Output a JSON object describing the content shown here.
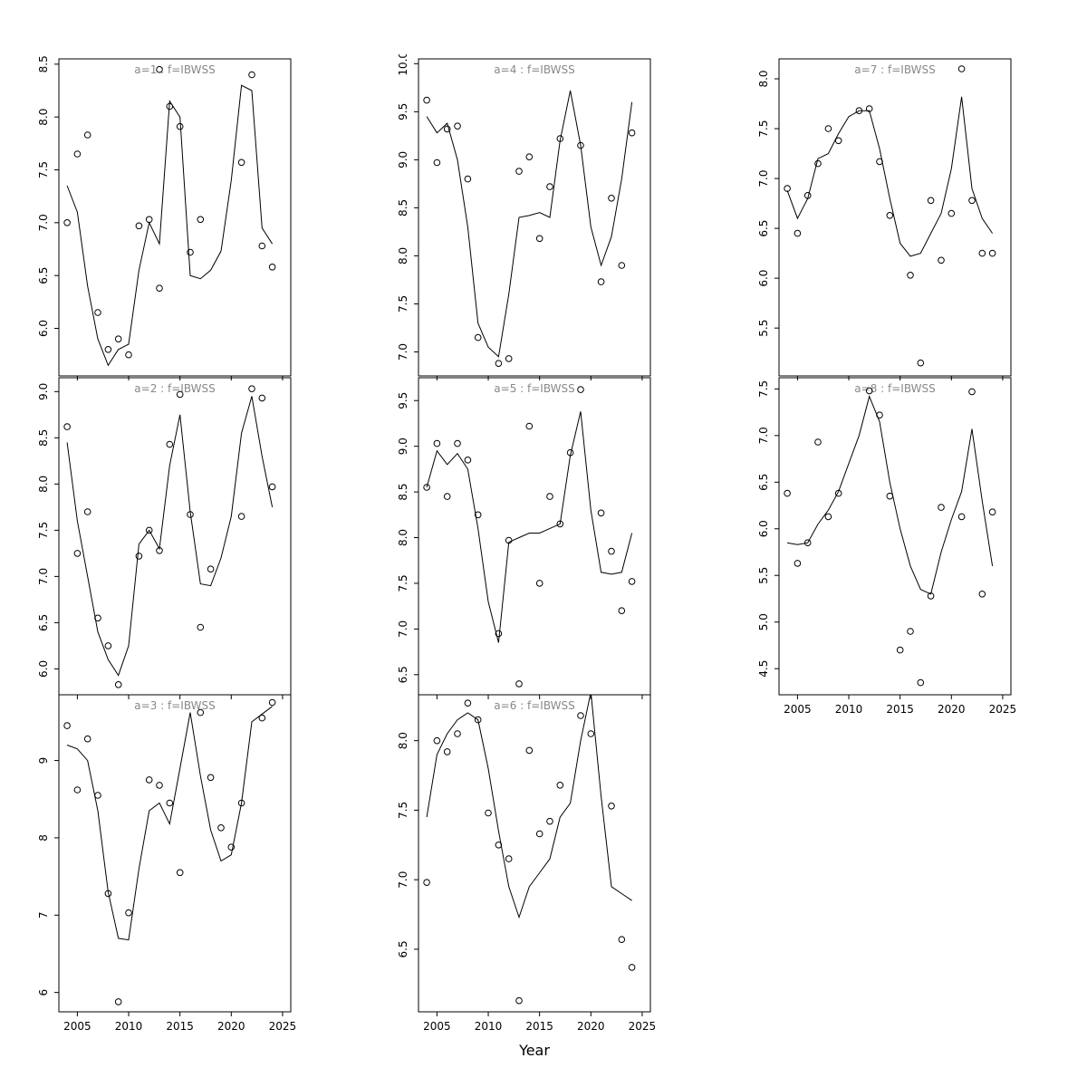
{
  "figure": {
    "xlabel": "Year",
    "background": "#ffffff",
    "axis_color": "#000000",
    "title_color": "#888888",
    "years": [
      2004,
      2005,
      2006,
      2007,
      2008,
      2009,
      2010,
      2011,
      2012,
      2013,
      2014,
      2015,
      2016,
      2017,
      2018,
      2019,
      2020,
      2021,
      2022,
      2023,
      2024
    ],
    "xticks": [
      2005,
      2010,
      2015,
      2020,
      2025
    ],
    "xlim": [
      2003.2,
      2025.8
    ]
  },
  "chart_data": [
    {
      "type": "scatter",
      "title": "a=1  :  f=IBWSS",
      "ylim": [
        5.55,
        8.55
      ],
      "yticks": [
        6.0,
        6.5,
        7.0,
        7.5,
        8.0,
        8.5
      ],
      "ytick_labels": [
        "6.0",
        "6.5",
        "7.0",
        "7.5",
        "8.0",
        "8.5"
      ],
      "show_x_labels": false,
      "points": [
        [
          2004,
          7.0
        ],
        [
          2005,
          7.65
        ],
        [
          2006,
          7.83
        ],
        [
          2007,
          6.15
        ],
        [
          2008,
          5.8
        ],
        [
          2009,
          5.9
        ],
        [
          2010,
          5.75
        ],
        [
          2011,
          6.97
        ],
        [
          2012,
          7.03
        ],
        [
          2013,
          6.38
        ],
        [
          2013,
          8.45
        ],
        [
          2014,
          8.1
        ],
        [
          2015,
          7.91
        ],
        [
          2016,
          6.72
        ],
        [
          2017,
          7.03
        ],
        [
          2021,
          7.57
        ],
        [
          2022,
          8.4
        ],
        [
          2023,
          6.78
        ],
        [
          2024,
          6.58
        ]
      ],
      "line": [
        7.35,
        7.1,
        6.4,
        5.9,
        5.65,
        5.8,
        5.85,
        6.55,
        7.0,
        6.8,
        8.15,
        8.0,
        6.5,
        6.47,
        6.55,
        6.73,
        7.4,
        8.3,
        8.25,
        6.95,
        6.8
      ]
    },
    {
      "type": "scatter",
      "title": "a=2  :  f=IBWSS",
      "ylim": [
        5.72,
        9.15
      ],
      "yticks": [
        6.0,
        6.5,
        7.0,
        7.5,
        8.0,
        8.5,
        9.0
      ],
      "ytick_labels": [
        "6.0",
        "6.5",
        "7.0",
        "7.5",
        "8.0",
        "8.5",
        "9.0"
      ],
      "show_x_labels": false,
      "points": [
        [
          2004,
          8.62
        ],
        [
          2005,
          7.25
        ],
        [
          2006,
          7.7
        ],
        [
          2007,
          6.55
        ],
        [
          2008,
          6.25
        ],
        [
          2009,
          5.83
        ],
        [
          2011,
          7.22
        ],
        [
          2012,
          7.5
        ],
        [
          2013,
          7.28
        ],
        [
          2014,
          8.43
        ],
        [
          2015,
          8.97
        ],
        [
          2016,
          7.67
        ],
        [
          2017,
          6.45
        ],
        [
          2018,
          7.08
        ],
        [
          2021,
          7.65
        ],
        [
          2022,
          9.03
        ],
        [
          2023,
          8.93
        ],
        [
          2024,
          7.97
        ]
      ],
      "line": [
        8.45,
        7.6,
        7.0,
        6.4,
        6.1,
        5.93,
        6.25,
        7.35,
        7.5,
        7.3,
        8.2,
        8.75,
        7.7,
        6.92,
        6.9,
        7.2,
        7.65,
        8.55,
        8.95,
        8.3,
        7.75
      ]
    },
    {
      "type": "scatter",
      "title": "a=3  :  f=IBWSS",
      "ylim": [
        5.75,
        9.85
      ],
      "yticks": [
        6,
        7,
        8,
        9
      ],
      "ytick_labels": [
        "6",
        "7",
        "8",
        "9"
      ],
      "show_x_labels": true,
      "points": [
        [
          2004,
          9.45
        ],
        [
          2005,
          8.62
        ],
        [
          2006,
          9.28
        ],
        [
          2007,
          8.55
        ],
        [
          2008,
          7.28
        ],
        [
          2009,
          5.88
        ],
        [
          2010,
          7.03
        ],
        [
          2012,
          8.75
        ],
        [
          2013,
          8.68
        ],
        [
          2014,
          8.45
        ],
        [
          2015,
          7.55
        ],
        [
          2017,
          9.62
        ],
        [
          2018,
          8.78
        ],
        [
          2019,
          8.13
        ],
        [
          2020,
          7.88
        ],
        [
          2021,
          8.45
        ],
        [
          2023,
          9.55
        ],
        [
          2024,
          9.75
        ]
      ],
      "line": [
        9.2,
        9.15,
        9.0,
        8.35,
        7.3,
        6.7,
        6.68,
        7.6,
        8.35,
        8.45,
        8.18,
        8.9,
        9.62,
        8.8,
        8.1,
        7.7,
        7.78,
        8.45,
        9.5,
        9.6,
        9.7
      ]
    },
    {
      "type": "scatter",
      "title": "a=4  :  f=IBWSS",
      "ylim": [
        6.75,
        10.05
      ],
      "yticks": [
        7.0,
        7.5,
        8.0,
        8.5,
        9.0,
        9.5,
        10.0
      ],
      "ytick_labels": [
        "7.0",
        "7.5",
        "8.0",
        "8.5",
        "9.0",
        "9.5",
        "10.0"
      ],
      "show_x_labels": false,
      "points": [
        [
          2004,
          9.62
        ],
        [
          2005,
          8.97
        ],
        [
          2006,
          9.32
        ],
        [
          2007,
          9.35
        ],
        [
          2008,
          8.8
        ],
        [
          2009,
          7.15
        ],
        [
          2011,
          6.88
        ],
        [
          2012,
          6.93
        ],
        [
          2013,
          8.88
        ],
        [
          2014,
          9.03
        ],
        [
          2015,
          8.18
        ],
        [
          2016,
          8.72
        ],
        [
          2017,
          9.22
        ],
        [
          2019,
          9.15
        ],
        [
          2021,
          7.73
        ],
        [
          2022,
          8.6
        ],
        [
          2023,
          7.9
        ],
        [
          2024,
          9.28
        ]
      ],
      "line": [
        9.45,
        9.28,
        9.38,
        9.0,
        8.3,
        7.3,
        7.05,
        6.95,
        7.6,
        8.4,
        8.42,
        8.45,
        8.4,
        9.2,
        9.72,
        9.15,
        8.3,
        7.9,
        8.2,
        8.8,
        9.6
      ]
    },
    {
      "type": "scatter",
      "title": "a=5  :  f=IBWSS",
      "ylim": [
        6.28,
        9.75
      ],
      "yticks": [
        6.5,
        7.0,
        7.5,
        8.0,
        8.5,
        9.0,
        9.5
      ],
      "ytick_labels": [
        "6.5",
        "7.0",
        "7.5",
        "8.0",
        "8.5",
        "9.0",
        "9.5"
      ],
      "show_x_labels": false,
      "points": [
        [
          2004,
          8.55
        ],
        [
          2005,
          9.03
        ],
        [
          2006,
          8.45
        ],
        [
          2007,
          9.03
        ],
        [
          2008,
          8.85
        ],
        [
          2009,
          8.25
        ],
        [
          2011,
          6.95
        ],
        [
          2012,
          7.97
        ],
        [
          2013,
          6.4
        ],
        [
          2014,
          9.22
        ],
        [
          2015,
          7.5
        ],
        [
          2016,
          8.45
        ],
        [
          2017,
          8.15
        ],
        [
          2018,
          8.93
        ],
        [
          2019,
          9.62
        ],
        [
          2021,
          8.27
        ],
        [
          2022,
          7.85
        ],
        [
          2023,
          7.2
        ],
        [
          2024,
          7.52
        ]
      ],
      "line": [
        8.55,
        8.95,
        8.8,
        8.92,
        8.75,
        8.1,
        7.3,
        6.85,
        7.95,
        8.0,
        8.05,
        8.05,
        8.1,
        8.15,
        8.9,
        9.38,
        8.3,
        7.62,
        7.6,
        7.62,
        8.05
      ]
    },
    {
      "type": "scatter",
      "title": "a=6  :  f=IBWSS",
      "ylim": [
        6.05,
        8.33
      ],
      "yticks": [
        6.5,
        7.0,
        7.5,
        8.0
      ],
      "ytick_labels": [
        "6.5",
        "7.0",
        "7.5",
        "8.0"
      ],
      "show_x_labels": true,
      "points": [
        [
          2004,
          6.98
        ],
        [
          2005,
          8.0
        ],
        [
          2006,
          7.92
        ],
        [
          2007,
          8.05
        ],
        [
          2008,
          8.27
        ],
        [
          2009,
          8.15
        ],
        [
          2010,
          7.48
        ],
        [
          2011,
          7.25
        ],
        [
          2012,
          7.15
        ],
        [
          2013,
          6.13
        ],
        [
          2014,
          7.93
        ],
        [
          2015,
          7.33
        ],
        [
          2016,
          7.42
        ],
        [
          2017,
          7.68
        ],
        [
          2019,
          8.18
        ],
        [
          2020,
          8.05
        ],
        [
          2022,
          7.53
        ],
        [
          2023,
          6.57
        ],
        [
          2024,
          6.37
        ]
      ],
      "line": [
        7.45,
        7.9,
        8.05,
        8.15,
        8.2,
        8.15,
        7.8,
        7.35,
        6.95,
        6.73,
        6.95,
        7.05,
        7.15,
        7.45,
        7.55,
        8.0,
        8.35,
        7.6,
        6.95,
        6.9,
        6.85
      ]
    },
    {
      "type": "scatter",
      "title": "a=7  :  f=IBWSS",
      "ylim": [
        5.02,
        8.2
      ],
      "yticks": [
        5.5,
        6.0,
        6.5,
        7.0,
        7.5,
        8.0
      ],
      "ytick_labels": [
        "5.5",
        "6.0",
        "6.5",
        "7.0",
        "7.5",
        "8.0"
      ],
      "show_x_labels": false,
      "points": [
        [
          2004,
          6.9
        ],
        [
          2005,
          6.45
        ],
        [
          2006,
          6.83
        ],
        [
          2007,
          7.15
        ],
        [
          2008,
          7.5
        ],
        [
          2009,
          7.38
        ],
        [
          2011,
          7.68
        ],
        [
          2012,
          7.7
        ],
        [
          2013,
          7.17
        ],
        [
          2014,
          6.63
        ],
        [
          2016,
          6.03
        ],
        [
          2017,
          5.15
        ],
        [
          2018,
          6.78
        ],
        [
          2019,
          6.18
        ],
        [
          2020,
          6.65
        ],
        [
          2021,
          8.1
        ],
        [
          2022,
          6.78
        ],
        [
          2023,
          6.25
        ],
        [
          2024,
          6.25
        ]
      ],
      "line": [
        6.88,
        6.6,
        6.8,
        7.2,
        7.25,
        7.45,
        7.62,
        7.68,
        7.68,
        7.3,
        6.8,
        6.35,
        6.22,
        6.25,
        6.45,
        6.65,
        7.1,
        7.82,
        6.9,
        6.6,
        6.45
      ]
    },
    {
      "type": "scatter",
      "title": "a=8  :  f=IBWSS",
      "ylim": [
        4.22,
        7.62
      ],
      "yticks": [
        4.5,
        5.0,
        5.5,
        6.0,
        6.5,
        7.0,
        7.5
      ],
      "ytick_labels": [
        "4.5",
        "5.0",
        "5.5",
        "6.0",
        "6.5",
        "7.0",
        "7.5"
      ],
      "show_x_labels": true,
      "points": [
        [
          2004,
          6.38
        ],
        [
          2005,
          5.63
        ],
        [
          2006,
          5.85
        ],
        [
          2007,
          6.93
        ],
        [
          2008,
          6.13
        ],
        [
          2009,
          6.38
        ],
        [
          2012,
          7.48
        ],
        [
          2013,
          7.22
        ],
        [
          2014,
          6.35
        ],
        [
          2015,
          4.7
        ],
        [
          2016,
          4.9
        ],
        [
          2017,
          4.35
        ],
        [
          2018,
          5.28
        ],
        [
          2019,
          6.23
        ],
        [
          2021,
          6.13
        ],
        [
          2022,
          7.47
        ],
        [
          2023,
          5.3
        ],
        [
          2024,
          6.18
        ]
      ],
      "line": [
        5.85,
        5.83,
        5.85,
        6.05,
        6.2,
        6.4,
        6.7,
        7.0,
        7.42,
        7.15,
        6.5,
        6.0,
        5.6,
        5.35,
        5.3,
        5.75,
        6.1,
        6.4,
        7.07,
        6.3,
        5.6
      ]
    }
  ]
}
